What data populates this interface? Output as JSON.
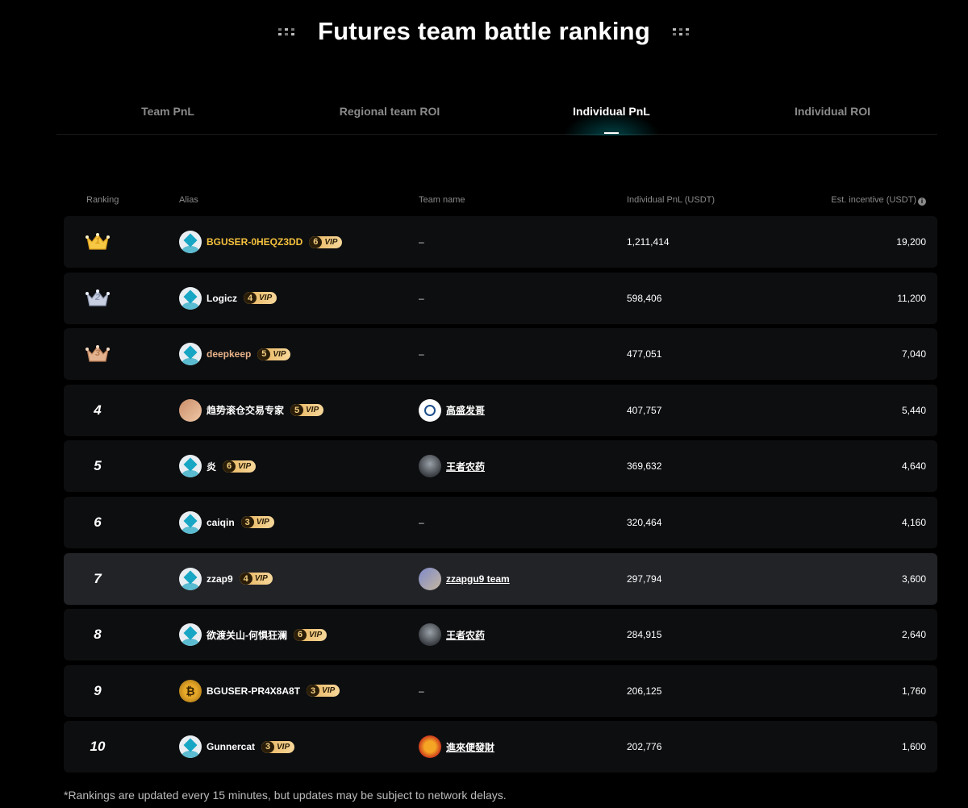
{
  "title": "Futures team battle ranking",
  "tabs": [
    {
      "label": "Team PnL",
      "active": false
    },
    {
      "label": "Regional team ROI",
      "active": false
    },
    {
      "label": "Individual PnL",
      "active": true
    },
    {
      "label": "Individual ROI",
      "active": false
    }
  ],
  "headers": {
    "ranking": "Ranking",
    "alias": "Alias",
    "team": "Team name",
    "pnl": "Individual PnL (USDT)",
    "incentive": "Est. incentive (USDT)"
  },
  "rows": [
    {
      "rank": "1",
      "medal": "gold",
      "alias": "BGUSER-0HEQZ3DD",
      "vip": "6",
      "vip_label": "VIP",
      "team": "–",
      "pnl": "1,211,414",
      "incentive": "19,200"
    },
    {
      "rank": "2",
      "medal": "silver",
      "alias": "Logicz",
      "vip": "4",
      "vip_label": "VIP",
      "team": "–",
      "pnl": "598,406",
      "incentive": "11,200"
    },
    {
      "rank": "3",
      "medal": "bronze",
      "alias": "deepkeep",
      "vip": "5",
      "vip_label": "VIP",
      "team": "–",
      "pnl": "477,051",
      "incentive": "7,040"
    },
    {
      "rank": "4",
      "alias": "趋势滚仓交易专家",
      "vip": "5",
      "vip_label": "VIP",
      "team": "高盛发哥",
      "pnl": "407,757",
      "incentive": "5,440"
    },
    {
      "rank": "5",
      "alias": "炎",
      "vip": "6",
      "vip_label": "VIP",
      "team": "王者农药",
      "pnl": "369,632",
      "incentive": "4,640"
    },
    {
      "rank": "6",
      "alias": "caiqin",
      "vip": "3",
      "vip_label": "VIP",
      "team": "–",
      "pnl": "320,464",
      "incentive": "4,160"
    },
    {
      "rank": "7",
      "alias": "zzap9",
      "vip": "4",
      "vip_label": "VIP",
      "team": "zzapgu9 team",
      "pnl": "297,794",
      "incentive": "3,600"
    },
    {
      "rank": "8",
      "alias": "欲渡关山-何惧狂澜",
      "vip": "6",
      "vip_label": "VIP",
      "team": "王者农药",
      "pnl": "284,915",
      "incentive": "2,640"
    },
    {
      "rank": "9",
      "alias": "BGUSER-PR4X8A8T",
      "vip": "3",
      "vip_label": "VIP",
      "team": "–",
      "pnl": "206,125",
      "incentive": "1,760"
    },
    {
      "rank": "10",
      "alias": "Gunnercat",
      "vip": "3",
      "vip_label": "VIP",
      "team": "進來便發財",
      "pnl": "202,776",
      "incentive": "1,600"
    }
  ],
  "footnote": "*Rankings are updated every 15 minutes, but updates may be subject to network delays."
}
